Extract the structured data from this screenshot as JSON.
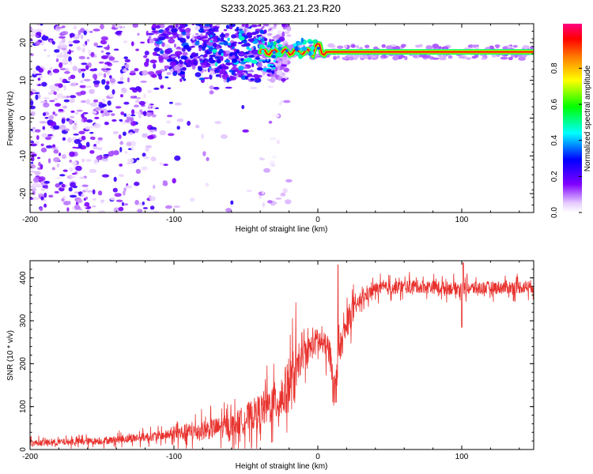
{
  "title": "S233.2025.363.21.23.R20",
  "chart_data": [
    {
      "type": "heatmap",
      "name": "spectrogram",
      "xlabel": "Height of straight line (km)",
      "ylabel": "Frequency (Hz)",
      "xlim": [
        -200,
        150
      ],
      "ylim": [
        -25,
        25
      ],
      "xticks": [
        -200,
        -100,
        0,
        100
      ],
      "yticks": [
        -20,
        -10,
        0,
        10,
        20
      ],
      "colorbar": {
        "label": "Normalized spectral amplitude",
        "range": [
          0,
          1
        ],
        "ticks": [
          0.0,
          0.2,
          0.4,
          0.6,
          0.8
        ],
        "colormap": [
          "#ffffff",
          "#e6ccff",
          "#8000ff",
          "#0000ff",
          "#00ffff",
          "#00ff00",
          "#ffff00",
          "#ff8000",
          "#ff0000",
          "#ff0080"
        ]
      },
      "signal_line": {
        "frequency_hz": 17.5,
        "from_km": -40,
        "to_km": 150,
        "peak_amplitude": 0.95
      },
      "noise_region": {
        "from_km": -200,
        "to_km": -40,
        "frequency_range_hz": [
          -25,
          25
        ]
      }
    },
    {
      "type": "line",
      "name": "snr",
      "xlabel": "Height of straight line (km)",
      "ylabel": "SNR (10 * v/v)",
      "xlim": [
        -200,
        150
      ],
      "ylim": [
        0,
        440
      ],
      "xticks": [
        -200,
        -100,
        0,
        100
      ],
      "yticks": [
        0,
        100,
        200,
        300,
        400
      ],
      "color": "#e8322e",
      "trend": [
        {
          "x": -200,
          "y": 15
        },
        {
          "x": -150,
          "y": 20
        },
        {
          "x": -100,
          "y": 35
        },
        {
          "x": -60,
          "y": 55
        },
        {
          "x": -40,
          "y": 90
        },
        {
          "x": -25,
          "y": 120
        },
        {
          "x": -18,
          "y": 160
        },
        {
          "x": -10,
          "y": 220
        },
        {
          "x": 0,
          "y": 255
        },
        {
          "x": 8,
          "y": 230
        },
        {
          "x": 12,
          "y": 140
        },
        {
          "x": 15,
          "y": 230
        },
        {
          "x": 22,
          "y": 310
        },
        {
          "x": 30,
          "y": 350
        },
        {
          "x": 40,
          "y": 375
        },
        {
          "x": 70,
          "y": 380
        },
        {
          "x": 100,
          "y": 375
        },
        {
          "x": 150,
          "y": 380
        }
      ],
      "notable_points": [
        {
          "x": 12,
          "y": 110
        },
        {
          "x": 100,
          "y": 285
        },
        {
          "x": 101,
          "y": 435
        },
        {
          "x": 14,
          "y": 430
        }
      ]
    }
  ]
}
